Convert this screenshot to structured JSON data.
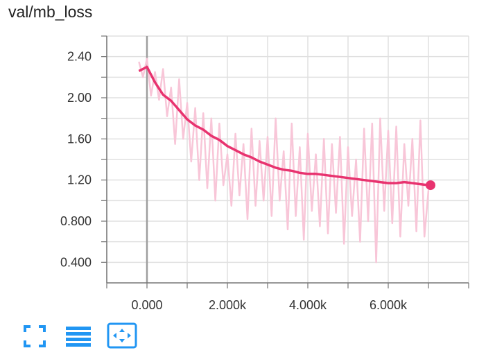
{
  "card": {
    "title": "val/mb_loss"
  },
  "toolbar": {
    "buttons": [
      {
        "name": "fullscreen-icon",
        "color": "#2196f3"
      },
      {
        "name": "list-icon",
        "color": "#2196f3"
      },
      {
        "name": "fit-domain-icon",
        "color": "#2196f3"
      }
    ]
  },
  "chart_data": {
    "type": "line",
    "title": "val/mb_loss",
    "xlim": [
      -1000,
      8000
    ],
    "ylim": [
      0.2,
      2.6
    ],
    "x_ticks": [
      0,
      2000,
      4000,
      6000
    ],
    "x_tick_labels": [
      "0.000",
      "2.000k",
      "4.000k",
      "6.000k"
    ],
    "y_ticks": [
      0.4,
      0.8,
      1.2,
      1.6,
      2.0,
      2.4
    ],
    "y_tick_labels": [
      "0.400",
      "0.800",
      "1.20",
      "1.60",
      "2.00",
      "2.40"
    ],
    "grid": true,
    "colors": {
      "smoothed": "#e8336f",
      "raw": "#f8c6d8",
      "zero_line": "#9e9e9e"
    },
    "series": [
      {
        "role": "smoothed",
        "x": [
          -200,
          0,
          200,
          400,
          600,
          800,
          1000,
          1200,
          1400,
          1600,
          1800,
          2000,
          2200,
          2400,
          2600,
          2800,
          3000,
          3200,
          3400,
          3600,
          3800,
          4000,
          4200,
          4400,
          4600,
          4800,
          5000,
          5200,
          5400,
          5600,
          5800,
          6000,
          6200,
          6400,
          6600,
          6800,
          7000
        ],
        "y": [
          2.26,
          2.3,
          2.15,
          2.03,
          1.97,
          1.88,
          1.79,
          1.73,
          1.69,
          1.63,
          1.59,
          1.53,
          1.49,
          1.45,
          1.42,
          1.38,
          1.35,
          1.32,
          1.3,
          1.29,
          1.27,
          1.26,
          1.26,
          1.25,
          1.24,
          1.23,
          1.22,
          1.21,
          1.2,
          1.19,
          1.18,
          1.17,
          1.17,
          1.18,
          1.17,
          1.16,
          1.15
        ]
      },
      {
        "role": "raw",
        "x": [
          -200,
          -100,
          0,
          100,
          200,
          300,
          400,
          500,
          600,
          700,
          800,
          900,
          1000,
          1100,
          1200,
          1300,
          1400,
          1500,
          1600,
          1700,
          1800,
          1900,
          2000,
          2100,
          2200,
          2300,
          2400,
          2500,
          2600,
          2700,
          2800,
          2900,
          3000,
          3100,
          3200,
          3300,
          3400,
          3500,
          3600,
          3700,
          3800,
          3900,
          4000,
          4100,
          4200,
          4300,
          4400,
          4500,
          4600,
          4700,
          4800,
          4900,
          5000,
          5100,
          5200,
          5300,
          5400,
          5500,
          5600,
          5700,
          5800,
          5900,
          6000,
          6100,
          6200,
          6300,
          6400,
          6500,
          6600,
          6700,
          6800,
          6900,
          7000
        ],
        "y": [
          2.35,
          2.2,
          2.38,
          2.02,
          2.25,
          1.98,
          2.28,
          1.82,
          2.1,
          1.55,
          2.18,
          1.6,
          1.95,
          1.38,
          1.9,
          1.2,
          1.85,
          1.12,
          1.8,
          1.0,
          1.75,
          1.15,
          1.45,
          0.95,
          1.65,
          1.05,
          1.55,
          0.82,
          1.7,
          0.95,
          1.58,
          1.0,
          1.62,
          0.85,
          1.8,
          1.0,
          1.48,
          0.72,
          1.75,
          0.85,
          1.52,
          0.62,
          1.65,
          0.9,
          1.45,
          0.75,
          1.6,
          0.68,
          1.55,
          0.88,
          1.62,
          0.58,
          1.52,
          0.85,
          1.4,
          0.6,
          1.7,
          0.8,
          1.75,
          0.4,
          1.8,
          0.9,
          1.68,
          0.78,
          1.72,
          0.65,
          1.55,
          0.95,
          1.6,
          0.7,
          1.78,
          0.65,
          1.1
        ]
      }
    ]
  }
}
